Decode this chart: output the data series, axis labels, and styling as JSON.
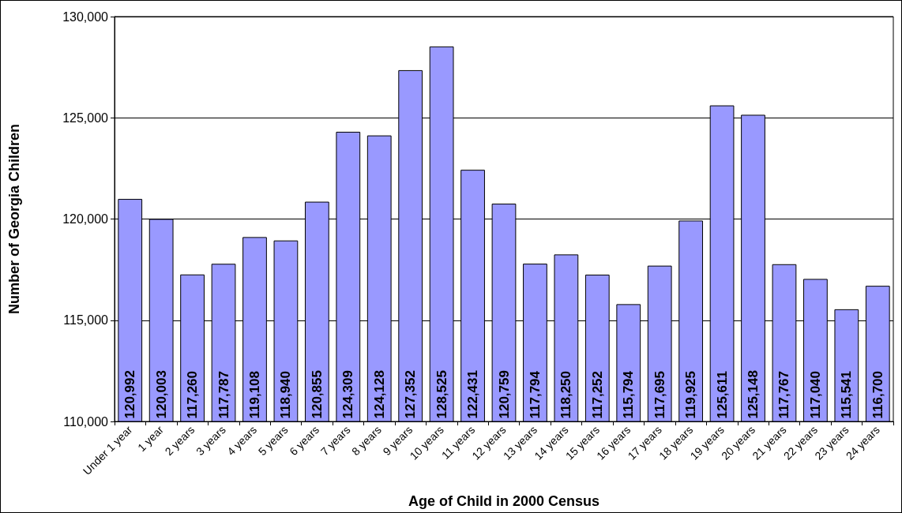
{
  "chart_data": {
    "type": "bar",
    "xlabel": "Age of Child in 2000 Census",
    "ylabel": "Number of Georgia Children",
    "categories": [
      "Under 1 year",
      "1 year",
      "2 years",
      "3 years",
      "4 years",
      "5 years",
      "6 years",
      "7 years",
      "8 years",
      "9 years",
      "10 years",
      "11 years",
      "12 years",
      "13 years",
      "14 years",
      "15 years",
      "16 years",
      "17 years",
      "18 years",
      "19 years",
      "20 years",
      "21 years",
      "22 years",
      "23 years",
      "24 years"
    ],
    "values": [
      120992,
      120003,
      117260,
      117787,
      119108,
      118940,
      120855,
      124309,
      124128,
      127352,
      128525,
      122431,
      120759,
      117794,
      118250,
      117252,
      115794,
      117695,
      119925,
      125611,
      125148,
      117767,
      117040,
      115541,
      116700
    ],
    "color": "#9999ff",
    "ylim": [
      110000,
      130000
    ],
    "yticks": [
      {
        "value": 110000,
        "label": "110,000"
      },
      {
        "value": 115000,
        "label": "115,000"
      },
      {
        "value": 120000,
        "label": "120,000"
      },
      {
        "value": 125000,
        "label": "125,000"
      },
      {
        "value": 130000,
        "label": "130,000"
      }
    ],
    "value_labels": [
      "120,992",
      "120,003",
      "117,260",
      "117,787",
      "119,108",
      "118,940",
      "120,855",
      "124,309",
      "124,128",
      "127,352",
      "128,525",
      "122,431",
      "120,759",
      "117,794",
      "118,250",
      "117,252",
      "115,794",
      "117,695",
      "119,925",
      "125,611",
      "125,148",
      "117,767",
      "117,040",
      "115,541",
      "116,700"
    ],
    "grid": "y"
  }
}
